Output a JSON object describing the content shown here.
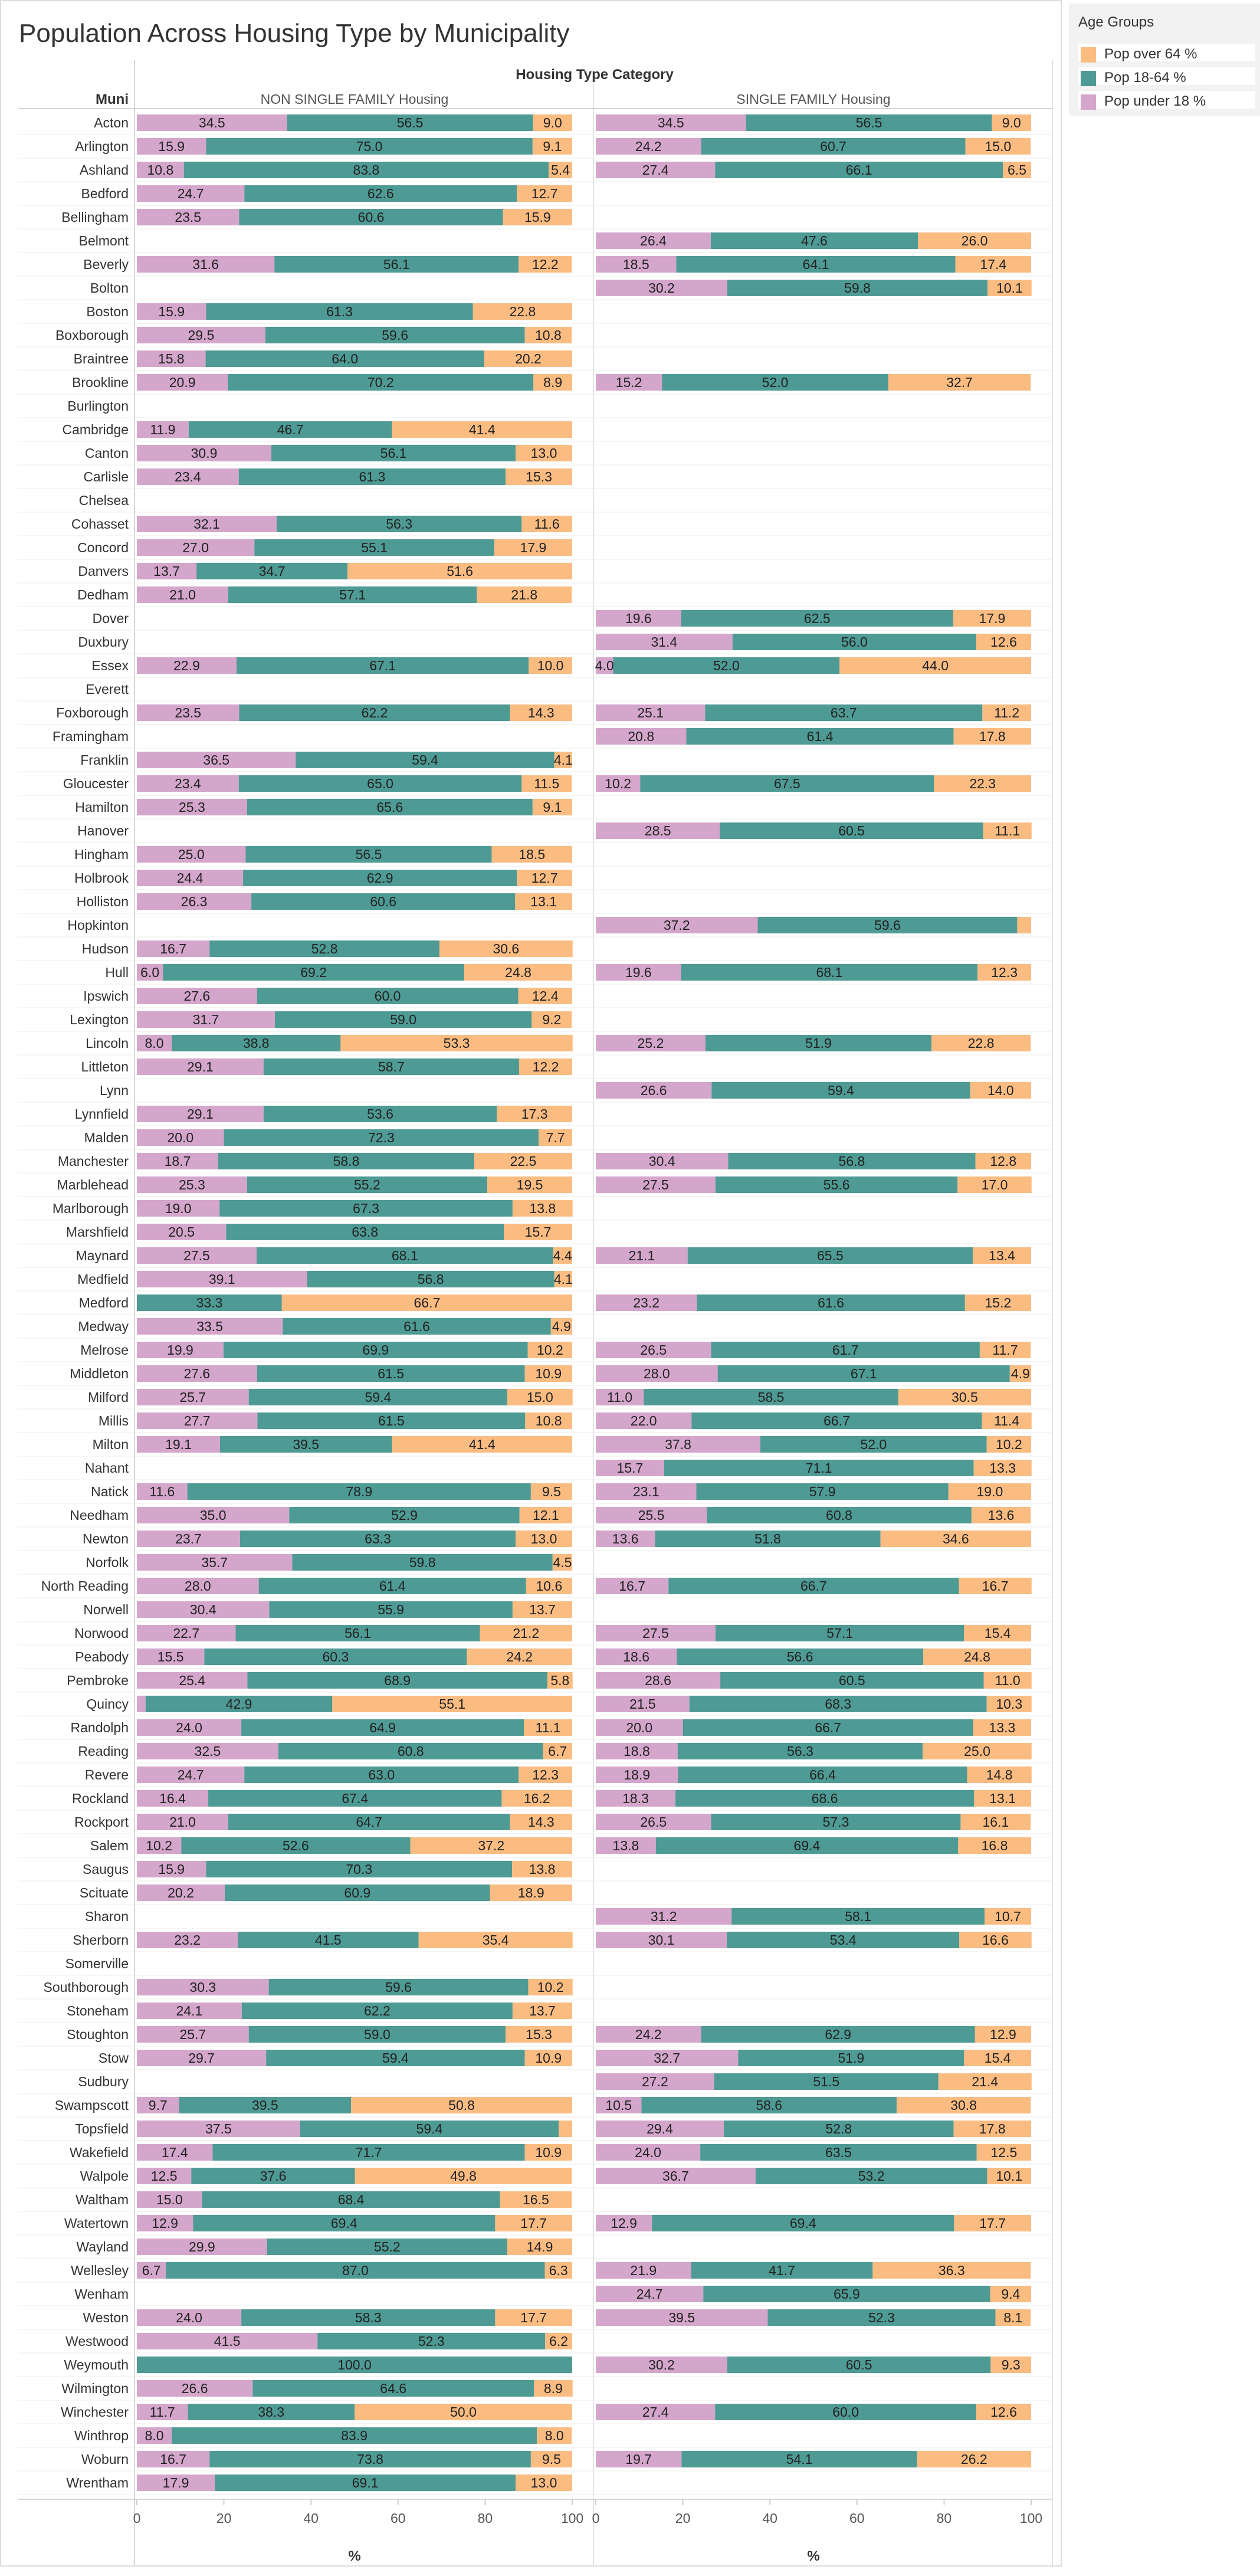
{
  "title": "Population Across Housing Type by Municipality",
  "legend": {
    "title": "Age Groups",
    "items": [
      {
        "label": "Pop over 64 %",
        "color": "#fbbc82"
      },
      {
        "label": "Pop 18-64 %",
        "color": "#4e9a94"
      },
      {
        "label": "Pop under 18 %",
        "color": "#d4a6cb"
      }
    ]
  },
  "chart_data": {
    "type": "bar",
    "orientation": "horizontal",
    "stacked": true,
    "title": "Population Across Housing Type by Municipality",
    "row_header": "Muni",
    "column_header": "Housing Type Category",
    "panels": [
      "NON SINGLE FAMILY Housing",
      "SINGLE FAMILY Housing"
    ],
    "xlabel": "%",
    "xlim": [
      0,
      100
    ],
    "xticks": [
      0,
      20,
      40,
      60,
      80,
      100
    ],
    "grid": false,
    "legend_position": "right",
    "stack_order": [
      "Pop under 18 %",
      "Pop 18-64 %",
      "Pop over 64 %"
    ],
    "series_colors": {
      "Pop under 18 %": "#d4a6cb",
      "Pop 18-64 %": "#4e9a94",
      "Pop over 64 %": "#fbbc82"
    },
    "rows": [
      {
        "muni": "Acton",
        "non_sf": [
          34.5,
          56.5,
          9.0
        ],
        "sf": [
          34.5,
          56.5,
          9.0
        ]
      },
      {
        "muni": "Arlington",
        "non_sf": [
          15.9,
          75.0,
          9.1
        ],
        "sf": [
          24.2,
          60.7,
          15.0
        ]
      },
      {
        "muni": "Ashland",
        "non_sf": [
          10.8,
          83.8,
          5.4
        ],
        "sf": [
          27.4,
          66.1,
          6.5
        ]
      },
      {
        "muni": "Bedford",
        "non_sf": [
          24.7,
          62.6,
          12.7
        ],
        "sf": null
      },
      {
        "muni": "Bellingham",
        "non_sf": [
          23.5,
          60.6,
          15.9
        ],
        "sf": null
      },
      {
        "muni": "Belmont",
        "non_sf": null,
        "sf": [
          26.4,
          47.6,
          26.0
        ]
      },
      {
        "muni": "Beverly",
        "non_sf": [
          31.6,
          56.1,
          12.2
        ],
        "sf": [
          18.5,
          64.1,
          17.4
        ]
      },
      {
        "muni": "Bolton",
        "non_sf": null,
        "sf": [
          30.2,
          59.8,
          10.1
        ]
      },
      {
        "muni": "Boston",
        "non_sf": [
          15.9,
          61.3,
          22.8
        ],
        "sf": null
      },
      {
        "muni": "Boxborough",
        "non_sf": [
          29.5,
          59.6,
          10.8
        ],
        "sf": null
      },
      {
        "muni": "Braintree",
        "non_sf": [
          15.8,
          64.0,
          20.2
        ],
        "sf": null
      },
      {
        "muni": "Brookline",
        "non_sf": [
          20.9,
          70.2,
          8.9
        ],
        "sf": [
          15.2,
          52.0,
          32.7
        ]
      },
      {
        "muni": "Burlington",
        "non_sf": null,
        "sf": null
      },
      {
        "muni": "Cambridge",
        "non_sf": [
          11.9,
          46.7,
          41.4
        ],
        "sf": null
      },
      {
        "muni": "Canton",
        "non_sf": [
          30.9,
          56.1,
          13.0
        ],
        "sf": null
      },
      {
        "muni": "Carlisle",
        "non_sf": [
          23.4,
          61.3,
          15.3
        ],
        "sf": null
      },
      {
        "muni": "Chelsea",
        "non_sf": null,
        "sf": null
      },
      {
        "muni": "Cohasset",
        "non_sf": [
          32.1,
          56.3,
          11.6
        ],
        "sf": null
      },
      {
        "muni": "Concord",
        "non_sf": [
          27.0,
          55.1,
          17.9
        ],
        "sf": null
      },
      {
        "muni": "Danvers",
        "non_sf": [
          13.7,
          34.7,
          51.6
        ],
        "sf": null
      },
      {
        "muni": "Dedham",
        "non_sf": [
          21.0,
          57.1,
          21.8
        ],
        "sf": null
      },
      {
        "muni": "Dover",
        "non_sf": null,
        "sf": [
          19.6,
          62.5,
          17.9
        ]
      },
      {
        "muni": "Duxbury",
        "non_sf": null,
        "sf": [
          31.4,
          56.0,
          12.6
        ]
      },
      {
        "muni": "Essex",
        "non_sf": [
          22.9,
          67.1,
          10.0
        ],
        "sf": [
          4.0,
          52.0,
          44.0
        ]
      },
      {
        "muni": "Everett",
        "non_sf": null,
        "sf": null
      },
      {
        "muni": "Foxborough",
        "non_sf": [
          23.5,
          62.2,
          14.3
        ],
        "sf": [
          25.1,
          63.7,
          11.2
        ]
      },
      {
        "muni": "Framingham",
        "non_sf": null,
        "sf": [
          20.8,
          61.4,
          17.8
        ]
      },
      {
        "muni": "Franklin",
        "non_sf": [
          36.5,
          59.4,
          4.1
        ],
        "sf": null
      },
      {
        "muni": "Gloucester",
        "non_sf": [
          23.4,
          65.0,
          11.5
        ],
        "sf": [
          10.2,
          67.5,
          22.3
        ]
      },
      {
        "muni": "Hamilton",
        "non_sf": [
          25.3,
          65.6,
          9.1
        ],
        "sf": null
      },
      {
        "muni": "Hanover",
        "non_sf": null,
        "sf": [
          28.5,
          60.5,
          11.1
        ]
      },
      {
        "muni": "Hingham",
        "non_sf": [
          25.0,
          56.5,
          18.5
        ],
        "sf": null
      },
      {
        "muni": "Holbrook",
        "non_sf": [
          24.4,
          62.9,
          12.7
        ],
        "sf": null
      },
      {
        "muni": "Holliston",
        "non_sf": [
          26.3,
          60.6,
          13.1
        ],
        "sf": null
      },
      {
        "muni": "Hopkinton",
        "non_sf": null,
        "sf": [
          37.2,
          59.6,
          3.2
        ]
      },
      {
        "muni": "Hudson",
        "non_sf": [
          16.7,
          52.8,
          30.6
        ],
        "sf": null
      },
      {
        "muni": "Hull",
        "non_sf": [
          6.0,
          69.2,
          24.8
        ],
        "sf": [
          19.6,
          68.1,
          12.3
        ]
      },
      {
        "muni": "Ipswich",
        "non_sf": [
          27.6,
          60.0,
          12.4
        ],
        "sf": null
      },
      {
        "muni": "Lexington",
        "non_sf": [
          31.7,
          59.0,
          9.2
        ],
        "sf": null
      },
      {
        "muni": "Lincoln",
        "non_sf": [
          8.0,
          38.8,
          53.3
        ],
        "sf": [
          25.2,
          51.9,
          22.8
        ]
      },
      {
        "muni": "Littleton",
        "non_sf": [
          29.1,
          58.7,
          12.2
        ],
        "sf": null
      },
      {
        "muni": "Lynn",
        "non_sf": null,
        "sf": [
          26.6,
          59.4,
          14.0
        ]
      },
      {
        "muni": "Lynnfield",
        "non_sf": [
          29.1,
          53.6,
          17.3
        ],
        "sf": null
      },
      {
        "muni": "Malden",
        "non_sf": [
          20.0,
          72.3,
          7.7
        ],
        "sf": null
      },
      {
        "muni": "Manchester",
        "non_sf": [
          18.7,
          58.8,
          22.5
        ],
        "sf": [
          30.4,
          56.8,
          12.8
        ]
      },
      {
        "muni": "Marblehead",
        "non_sf": [
          25.3,
          55.2,
          19.5
        ],
        "sf": [
          27.5,
          55.6,
          17.0
        ]
      },
      {
        "muni": "Marlborough",
        "non_sf": [
          19.0,
          67.3,
          13.8
        ],
        "sf": null
      },
      {
        "muni": "Marshfield",
        "non_sf": [
          20.5,
          63.8,
          15.7
        ],
        "sf": null
      },
      {
        "muni": "Maynard",
        "non_sf": [
          27.5,
          68.1,
          4.4
        ],
        "sf": [
          21.1,
          65.5,
          13.4
        ]
      },
      {
        "muni": "Medfield",
        "non_sf": [
          39.1,
          56.8,
          4.1
        ],
        "sf": null
      },
      {
        "muni": "Medford",
        "non_sf": [
          0,
          33.3,
          66.7
        ],
        "sf": [
          23.2,
          61.6,
          15.2
        ]
      },
      {
        "muni": "Medway",
        "non_sf": [
          33.5,
          61.6,
          4.9
        ],
        "sf": null
      },
      {
        "muni": "Melrose",
        "non_sf": [
          19.9,
          69.9,
          10.2
        ],
        "sf": [
          26.5,
          61.7,
          11.7
        ]
      },
      {
        "muni": "Middleton",
        "non_sf": [
          27.6,
          61.5,
          10.9
        ],
        "sf": [
          28.0,
          67.1,
          4.9
        ]
      },
      {
        "muni": "Milford",
        "non_sf": [
          25.7,
          59.4,
          15.0
        ],
        "sf": [
          11.0,
          58.5,
          30.5
        ]
      },
      {
        "muni": "Millis",
        "non_sf": [
          27.7,
          61.5,
          10.8
        ],
        "sf": [
          22.0,
          66.7,
          11.4
        ]
      },
      {
        "muni": "Milton",
        "non_sf": [
          19.1,
          39.5,
          41.4
        ],
        "sf": [
          37.8,
          52.0,
          10.2
        ]
      },
      {
        "muni": "Nahant",
        "non_sf": null,
        "sf": [
          15.7,
          71.1,
          13.3
        ]
      },
      {
        "muni": "Natick",
        "non_sf": [
          11.6,
          78.9,
          9.5
        ],
        "sf": [
          23.1,
          57.9,
          19.0
        ]
      },
      {
        "muni": "Needham",
        "non_sf": [
          35.0,
          52.9,
          12.1
        ],
        "sf": [
          25.5,
          60.8,
          13.6
        ]
      },
      {
        "muni": "Newton",
        "non_sf": [
          23.7,
          63.3,
          13.0
        ],
        "sf": [
          13.6,
          51.8,
          34.6
        ]
      },
      {
        "muni": "Norfolk",
        "non_sf": [
          35.7,
          59.8,
          4.5
        ],
        "sf": null
      },
      {
        "muni": "North Reading",
        "non_sf": [
          28.0,
          61.4,
          10.6
        ],
        "sf": [
          16.7,
          66.7,
          16.7
        ]
      },
      {
        "muni": "Norwell",
        "non_sf": [
          30.4,
          55.9,
          13.7
        ],
        "sf": null
      },
      {
        "muni": "Norwood",
        "non_sf": [
          22.7,
          56.1,
          21.2
        ],
        "sf": [
          27.5,
          57.1,
          15.4
        ]
      },
      {
        "muni": "Peabody",
        "non_sf": [
          15.5,
          60.3,
          24.2
        ],
        "sf": [
          18.6,
          56.6,
          24.8
        ]
      },
      {
        "muni": "Pembroke",
        "non_sf": [
          25.4,
          68.9,
          5.8
        ],
        "sf": [
          28.6,
          60.5,
          11.0
        ]
      },
      {
        "muni": "Quincy",
        "non_sf": [
          2.0,
          42.9,
          55.1
        ],
        "sf": [
          21.5,
          68.3,
          10.3
        ]
      },
      {
        "muni": "Randolph",
        "non_sf": [
          24.0,
          64.9,
          11.1
        ],
        "sf": [
          20.0,
          66.7,
          13.3
        ]
      },
      {
        "muni": "Reading",
        "non_sf": [
          32.5,
          60.8,
          6.7
        ],
        "sf": [
          18.8,
          56.3,
          25.0
        ]
      },
      {
        "muni": "Revere",
        "non_sf": [
          24.7,
          63.0,
          12.3
        ],
        "sf": [
          18.9,
          66.4,
          14.8
        ]
      },
      {
        "muni": "Rockland",
        "non_sf": [
          16.4,
          67.4,
          16.2
        ],
        "sf": [
          18.3,
          68.6,
          13.1
        ]
      },
      {
        "muni": "Rockport",
        "non_sf": [
          21.0,
          64.7,
          14.3
        ],
        "sf": [
          26.5,
          57.3,
          16.1
        ]
      },
      {
        "muni": "Salem",
        "non_sf": [
          10.2,
          52.6,
          37.2
        ],
        "sf": [
          13.8,
          69.4,
          16.8
        ]
      },
      {
        "muni": "Saugus",
        "non_sf": [
          15.9,
          70.3,
          13.8
        ],
        "sf": null
      },
      {
        "muni": "Scituate",
        "non_sf": [
          20.2,
          60.9,
          18.9
        ],
        "sf": null
      },
      {
        "muni": "Sharon",
        "non_sf": null,
        "sf": [
          31.2,
          58.1,
          10.7
        ]
      },
      {
        "muni": "Sherborn",
        "non_sf": [
          23.2,
          41.5,
          35.4
        ],
        "sf": [
          30.1,
          53.4,
          16.6
        ]
      },
      {
        "muni": "Somerville",
        "non_sf": null,
        "sf": null
      },
      {
        "muni": "Southborough",
        "non_sf": [
          30.3,
          59.6,
          10.2
        ],
        "sf": null
      },
      {
        "muni": "Stoneham",
        "non_sf": [
          24.1,
          62.2,
          13.7
        ],
        "sf": null
      },
      {
        "muni": "Stoughton",
        "non_sf": [
          25.7,
          59.0,
          15.3
        ],
        "sf": [
          24.2,
          62.9,
          12.9
        ]
      },
      {
        "muni": "Stow",
        "non_sf": [
          29.7,
          59.4,
          10.9
        ],
        "sf": [
          32.7,
          51.9,
          15.4
        ]
      },
      {
        "muni": "Sudbury",
        "non_sf": null,
        "sf": [
          27.2,
          51.5,
          21.4
        ]
      },
      {
        "muni": "Swampscott",
        "non_sf": [
          9.7,
          39.5,
          50.8
        ],
        "sf": [
          10.5,
          58.6,
          30.8
        ]
      },
      {
        "muni": "Topsfield",
        "non_sf": [
          37.5,
          59.4,
          3.1
        ],
        "sf": [
          29.4,
          52.8,
          17.8
        ]
      },
      {
        "muni": "Wakefield",
        "non_sf": [
          17.4,
          71.7,
          10.9
        ],
        "sf": [
          24.0,
          63.5,
          12.5
        ]
      },
      {
        "muni": "Walpole",
        "non_sf": [
          12.5,
          37.6,
          49.8
        ],
        "sf": [
          36.7,
          53.2,
          10.1
        ]
      },
      {
        "muni": "Waltham",
        "non_sf": [
          15.0,
          68.4,
          16.5
        ],
        "sf": null
      },
      {
        "muni": "Watertown",
        "non_sf": [
          12.9,
          69.4,
          17.7
        ],
        "sf": [
          12.9,
          69.4,
          17.7
        ]
      },
      {
        "muni": "Wayland",
        "non_sf": [
          29.9,
          55.2,
          14.9
        ],
        "sf": null
      },
      {
        "muni": "Wellesley",
        "non_sf": [
          6.7,
          87.0,
          6.3
        ],
        "sf": [
          21.9,
          41.7,
          36.3
        ]
      },
      {
        "muni": "Wenham",
        "non_sf": null,
        "sf": [
          24.7,
          65.9,
          9.4
        ]
      },
      {
        "muni": "Weston",
        "non_sf": [
          24.0,
          58.3,
          17.7
        ],
        "sf": [
          39.5,
          52.3,
          8.1
        ]
      },
      {
        "muni": "Westwood",
        "non_sf": [
          41.5,
          52.3,
          6.2
        ],
        "sf": null
      },
      {
        "muni": "Weymouth",
        "non_sf": [
          0,
          100.0,
          0
        ],
        "sf": [
          30.2,
          60.5,
          9.3
        ]
      },
      {
        "muni": "Wilmington",
        "non_sf": [
          26.6,
          64.6,
          8.9
        ],
        "sf": null
      },
      {
        "muni": "Winchester",
        "non_sf": [
          11.7,
          38.3,
          50.0
        ],
        "sf": [
          27.4,
          60.0,
          12.6
        ]
      },
      {
        "muni": "Winthrop",
        "non_sf": [
          8.0,
          83.9,
          8.0
        ],
        "sf": null
      },
      {
        "muni": "Woburn",
        "non_sf": [
          16.7,
          73.8,
          9.5
        ],
        "sf": [
          19.7,
          54.1,
          26.2
        ]
      },
      {
        "muni": "Wrentham",
        "non_sf": [
          17.9,
          69.1,
          13.0
        ],
        "sf": null
      }
    ]
  }
}
